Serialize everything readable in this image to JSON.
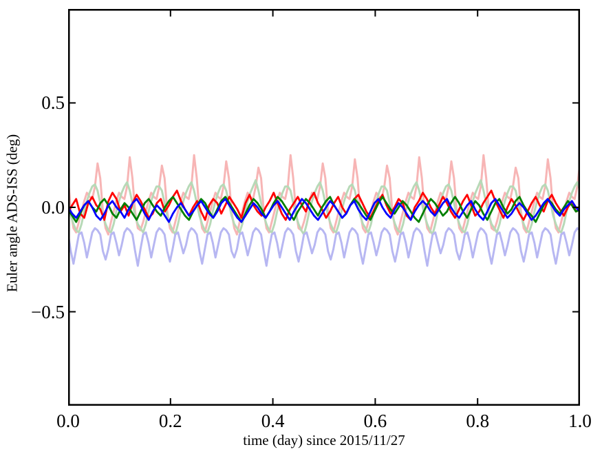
{
  "figure": {
    "xlabel": "time (day) since 2015/11/27",
    "ylabel": "Euler angle ADS-ISS (deg)"
  },
  "chart_data": {
    "type": "line",
    "title": "",
    "xlabel": "time (day) since 2015/11/27",
    "ylabel": "Euler angle ADS-ISS (deg)",
    "xlim": [
      0.0,
      1.0
    ],
    "ylim": [
      -0.95,
      0.95
    ],
    "grid": false,
    "legend": "none",
    "background_color": "#ffffff",
    "frame_color": "#000000",
    "tick_direction": "in",
    "xticks": {
      "values": [
        0.0,
        0.2,
        0.4,
        0.6,
        0.8,
        1.0
      ],
      "labels": [
        "0.0",
        "0.2",
        "0.4",
        "0.6",
        "0.8",
        "1.0"
      ]
    },
    "yticks": {
      "values": [
        0.5,
        0.0,
        -0.5
      ],
      "labels": [
        "0.5",
        "0.0",
        "−0.5"
      ]
    },
    "series": [
      {
        "name": "angle-1-orbital-pale-red",
        "color": "#f7b5b5",
        "width": 3,
        "y": [
          0.14,
          -0.02,
          -0.1,
          -0.12,
          -0.07,
          -0.02,
          0.03,
          0.07,
          0.05,
          0.04,
          0.1,
          0.21,
          0.14,
          -0.02,
          -0.1,
          -0.13,
          -0.07,
          -0.02,
          0.03,
          0.07,
          0.05,
          0.04,
          0.1,
          0.24,
          0.14,
          -0.02,
          -0.1,
          -0.11,
          -0.07,
          -0.02,
          0.03,
          0.07,
          0.05,
          0.04,
          0.1,
          0.2,
          0.14,
          -0.02,
          -0.1,
          -0.12,
          -0.07,
          -0.02,
          0.03,
          0.07,
          0.05,
          0.04,
          0.1,
          0.25,
          0.14,
          -0.02,
          -0.1,
          -0.12,
          -0.07,
          -0.02,
          0.03,
          0.07,
          0.05,
          0.04,
          0.1,
          0.22,
          0.14,
          -0.02,
          -0.1,
          -0.13,
          -0.07,
          -0.02,
          0.03,
          0.07,
          0.05,
          0.04,
          0.1,
          0.19,
          0.14,
          -0.02,
          -0.1,
          -0.12,
          -0.07,
          -0.02,
          0.03,
          0.07,
          0.05,
          0.04,
          0.1,
          0.25,
          0.14,
          -0.02,
          -0.1,
          -0.11,
          -0.07,
          -0.02,
          0.03,
          0.07,
          0.05,
          0.04,
          0.1,
          0.21,
          0.14,
          -0.02,
          -0.1,
          -0.12,
          -0.07,
          -0.02,
          0.03,
          0.07,
          0.05,
          0.04,
          0.1,
          0.23,
          0.14,
          -0.02,
          -0.1,
          -0.12,
          -0.07,
          -0.02,
          0.03,
          0.07,
          0.05,
          0.04,
          0.1,
          0.2,
          0.14,
          -0.02,
          -0.1,
          -0.13,
          -0.07,
          -0.02,
          0.03,
          0.07,
          0.05,
          0.04,
          0.1,
          0.24,
          0.14,
          -0.02,
          -0.1,
          -0.12,
          -0.07,
          -0.02,
          0.03,
          0.07,
          0.05,
          0.04,
          0.1,
          0.22,
          0.14,
          -0.02,
          -0.1,
          -0.12,
          -0.07,
          -0.02,
          0.03,
          0.07,
          0.05,
          0.04,
          0.1,
          0.25,
          0.14,
          -0.02,
          -0.1,
          -0.11,
          -0.07,
          -0.02,
          0.03,
          0.07,
          0.05,
          0.04,
          0.1,
          0.19,
          0.14,
          -0.02,
          -0.1,
          -0.12,
          -0.07,
          -0.02,
          0.03,
          0.07,
          0.05,
          0.04,
          0.1,
          0.23,
          0.14,
          -0.02,
          -0.1,
          -0.12,
          -0.07,
          -0.02,
          0.03,
          0.07,
          0.05,
          0.04,
          0.1,
          0.21
        ]
      },
      {
        "name": "angle-2-orbital-pale-green",
        "color": "#b7d9b7",
        "width": 3,
        "y": [
          0.02,
          -0.04,
          -0.08,
          -0.11,
          -0.12,
          -0.08,
          -0.02,
          0.03,
          0.07,
          0.1,
          0.11,
          0.08,
          0.02,
          -0.04,
          -0.08,
          -0.11,
          -0.12,
          -0.08,
          -0.02,
          0.03,
          0.07,
          0.1,
          0.12,
          0.08,
          0.02,
          -0.04,
          -0.08,
          -0.1,
          -0.12,
          -0.08,
          -0.02,
          0.03,
          0.07,
          0.1,
          0.1,
          0.08,
          0.02,
          -0.04,
          -0.08,
          -0.11,
          -0.13,
          -0.08,
          -0.02,
          0.03,
          0.07,
          0.1,
          0.12,
          0.08,
          0.02,
          -0.04,
          -0.08,
          -0.11,
          -0.12,
          -0.08,
          -0.02,
          0.03,
          0.07,
          0.1,
          0.11,
          0.08,
          0.02,
          -0.04,
          -0.08,
          -0.1,
          -0.12,
          -0.08,
          -0.02,
          0.03,
          0.07,
          0.1,
          0.13,
          0.08,
          0.02,
          -0.04,
          -0.08,
          -0.11,
          -0.12,
          -0.08,
          -0.02,
          0.03,
          0.07,
          0.1,
          0.1,
          0.08,
          0.02,
          -0.04,
          -0.08,
          -0.11,
          -0.13,
          -0.08,
          -0.02,
          0.03,
          0.07,
          0.1,
          0.12,
          0.08,
          0.02,
          -0.04,
          -0.08,
          -0.11,
          -0.12,
          -0.08,
          -0.02,
          0.03,
          0.07,
          0.1,
          0.11,
          0.08,
          0.02,
          -0.04,
          -0.08,
          -0.1,
          -0.12,
          -0.08,
          -0.02,
          0.03,
          0.07,
          0.1,
          0.1,
          0.08,
          0.02,
          -0.04,
          -0.08,
          -0.11,
          -0.12,
          -0.08,
          -0.02,
          0.03,
          0.07,
          0.1,
          0.12,
          0.08,
          0.02,
          -0.04,
          -0.08,
          -0.11,
          -0.13,
          -0.08,
          -0.02,
          0.03,
          0.07,
          0.1,
          0.11,
          0.08,
          0.02,
          -0.04,
          -0.08,
          -0.11,
          -0.12,
          -0.08,
          -0.02,
          0.03,
          0.07,
          0.1,
          0.13,
          0.08,
          0.02,
          -0.04,
          -0.08,
          -0.1,
          -0.12,
          -0.08,
          -0.02,
          0.03,
          0.07,
          0.1,
          0.1,
          0.08,
          0.02,
          -0.04,
          -0.08,
          -0.11,
          -0.12,
          -0.08,
          -0.02,
          0.03,
          0.07,
          0.1,
          0.11,
          0.08,
          0.02,
          -0.04,
          -0.08,
          -0.11,
          -0.12,
          -0.08,
          -0.02,
          0.03,
          0.07,
          0.1,
          0.12,
          0.08
        ]
      },
      {
        "name": "angle-3-orbital-pale-blue",
        "color": "#b7b7f2",
        "width": 3,
        "y": [
          -0.13,
          -0.21,
          -0.27,
          -0.2,
          -0.13,
          -0.12,
          -0.17,
          -0.24,
          -0.18,
          -0.12,
          -0.1,
          -0.11,
          -0.13,
          -0.21,
          -0.25,
          -0.2,
          -0.13,
          -0.12,
          -0.17,
          -0.23,
          -0.18,
          -0.12,
          -0.1,
          -0.11,
          -0.13,
          -0.21,
          -0.28,
          -0.2,
          -0.13,
          -0.12,
          -0.17,
          -0.24,
          -0.18,
          -0.12,
          -0.1,
          -0.11,
          -0.13,
          -0.21,
          -0.26,
          -0.2,
          -0.13,
          -0.12,
          -0.17,
          -0.22,
          -0.18,
          -0.12,
          -0.1,
          -0.11,
          -0.13,
          -0.21,
          -0.27,
          -0.2,
          -0.13,
          -0.12,
          -0.17,
          -0.24,
          -0.18,
          -0.12,
          -0.1,
          -0.11,
          -0.13,
          -0.21,
          -0.24,
          -0.2,
          -0.13,
          -0.12,
          -0.17,
          -0.23,
          -0.18,
          -0.12,
          -0.1,
          -0.11,
          -0.13,
          -0.21,
          -0.28,
          -0.2,
          -0.13,
          -0.12,
          -0.17,
          -0.24,
          -0.18,
          -0.12,
          -0.1,
          -0.11,
          -0.13,
          -0.21,
          -0.26,
          -0.2,
          -0.13,
          -0.12,
          -0.17,
          -0.22,
          -0.18,
          -0.12,
          -0.1,
          -0.11,
          -0.13,
          -0.21,
          -0.25,
          -0.2,
          -0.13,
          -0.12,
          -0.17,
          -0.24,
          -0.18,
          -0.12,
          -0.1,
          -0.11,
          -0.13,
          -0.21,
          -0.27,
          -0.2,
          -0.13,
          -0.12,
          -0.17,
          -0.23,
          -0.18,
          -0.12,
          -0.1,
          -0.11,
          -0.13,
          -0.21,
          -0.26,
          -0.2,
          -0.13,
          -0.12,
          -0.17,
          -0.24,
          -0.18,
          -0.12,
          -0.1,
          -0.11,
          -0.13,
          -0.21,
          -0.28,
          -0.2,
          -0.13,
          -0.12,
          -0.17,
          -0.22,
          -0.18,
          -0.12,
          -0.1,
          -0.11,
          -0.13,
          -0.21,
          -0.25,
          -0.2,
          -0.13,
          -0.12,
          -0.17,
          -0.24,
          -0.18,
          -0.12,
          -0.1,
          -0.11,
          -0.13,
          -0.21,
          -0.27,
          -0.2,
          -0.13,
          -0.12,
          -0.17,
          -0.23,
          -0.18,
          -0.12,
          -0.1,
          -0.11,
          -0.13,
          -0.21,
          -0.26,
          -0.2,
          -0.13,
          -0.12,
          -0.17,
          -0.24,
          -0.18,
          -0.12,
          -0.1,
          -0.11,
          -0.13,
          -0.21,
          -0.27,
          -0.2,
          -0.13,
          -0.12,
          -0.17,
          -0.23,
          -0.18,
          -0.12,
          -0.1,
          -0.11
        ]
      },
      {
        "name": "angle-1-residual-red",
        "color": "#ff0000",
        "width": 2.8,
        "y": [
          -0.02,
          0.01,
          0.04,
          -0.03,
          -0.05,
          0.02,
          0.05,
          0.01,
          -0.01,
          -0.06,
          0.03,
          0.07,
          0.04,
          -0.02,
          0.01,
          -0.04,
          0.02,
          0.06,
          0.03,
          -0.01,
          -0.05,
          -0.03,
          0.02,
          0.04,
          -0.02,
          0.01,
          0.05,
          0.08,
          0.03,
          -0.01,
          -0.04,
          0.0,
          0.03,
          -0.02,
          -0.06,
          0.01,
          0.04,
          0.02,
          -0.03,
          0.01,
          0.05,
          0.02,
          -0.01,
          -0.05,
          0.02,
          0.06,
          0.01,
          -0.02,
          -0.04,
          0.0,
          0.03,
          0.07,
          0.02,
          -0.03,
          -0.06,
          -0.01,
          0.02,
          0.05,
          0.01,
          -0.02,
          0.04,
          0.07,
          0.02,
          -0.01,
          -0.05,
          -0.02,
          0.02,
          0.05,
          0.0,
          -0.03,
          0.01,
          0.04,
          0.06,
          0.02,
          -0.02,
          -0.05,
          -0.01,
          0.03,
          0.06,
          0.01,
          -0.03,
          0.0,
          0.04,
          0.02,
          -0.04,
          -0.06,
          0.0,
          0.03,
          0.07,
          0.04,
          0.0,
          -0.03,
          0.01,
          0.05,
          0.02,
          -0.02,
          -0.05,
          -0.01,
          0.03,
          0.06,
          0.01,
          -0.04,
          -0.02,
          0.02,
          0.05,
          0.08,
          0.03,
          -0.01,
          -0.05,
          0.0,
          0.04,
          0.01,
          -0.03,
          -0.06,
          -0.02,
          0.02,
          0.05,
          0.01,
          -0.02,
          0.03,
          0.06,
          0.02,
          -0.01,
          -0.04,
          0.0,
          0.03,
          -0.02,
          -0.01
        ]
      },
      {
        "name": "angle-2-residual-green",
        "color": "#007f00",
        "width": 2.8,
        "y": [
          -0.01,
          -0.04,
          -0.07,
          -0.03,
          0.01,
          0.03,
          0.0,
          -0.02,
          0.02,
          0.04,
          0.01,
          -0.03,
          -0.05,
          -0.01,
          0.02,
          0.0,
          -0.03,
          -0.06,
          -0.02,
          0.02,
          0.04,
          0.01,
          -0.02,
          -0.04,
          0.0,
          0.03,
          0.05,
          0.02,
          -0.01,
          -0.04,
          -0.06,
          -0.02,
          0.01,
          0.04,
          0.02,
          -0.02,
          -0.05,
          -0.01,
          0.03,
          0.05,
          0.02,
          -0.01,
          -0.04,
          -0.07,
          -0.03,
          0.01,
          0.04,
          0.02,
          -0.01,
          -0.05,
          -0.02,
          0.02,
          0.05,
          0.03,
          0.0,
          -0.03,
          -0.06,
          -0.02,
          0.01,
          0.04,
          0.02,
          -0.01,
          -0.04,
          0.0,
          0.03,
          0.05,
          0.01,
          -0.02,
          -0.05,
          -0.03,
          0.01,
          0.04,
          0.02,
          -0.01,
          -0.04,
          -0.06,
          -0.02,
          0.02,
          0.05,
          0.02,
          -0.01,
          -0.03,
          0.0,
          0.03,
          0.01,
          -0.02,
          -0.05,
          -0.07,
          -0.03,
          0.01,
          0.04,
          0.02,
          -0.01,
          -0.04,
          -0.02,
          0.02,
          0.05,
          0.02,
          -0.02,
          -0.05,
          -0.01,
          0.03,
          0.01,
          -0.03,
          -0.06,
          -0.02,
          0.02,
          0.04,
          0.0,
          -0.03,
          -0.01,
          0.03,
          0.05,
          0.01,
          -0.02,
          -0.04,
          -0.07,
          -0.03,
          0.01,
          0.04,
          0.02,
          -0.01,
          -0.03,
          0.0,
          0.03,
          0.01,
          -0.02,
          -0.01
        ]
      },
      {
        "name": "angle-3-residual-blue",
        "color": "#0000ff",
        "width": 2.8,
        "y": [
          0.0,
          -0.03,
          -0.05,
          -0.02,
          0.01,
          0.03,
          0.0,
          -0.04,
          -0.06,
          -0.03,
          0.01,
          0.03,
          0.0,
          -0.02,
          -0.05,
          -0.01,
          0.02,
          0.04,
          0.01,
          -0.03,
          -0.06,
          -0.02,
          0.01,
          -0.01,
          -0.04,
          -0.07,
          -0.03,
          0.0,
          0.02,
          -0.01,
          -0.04,
          -0.02,
          0.01,
          0.03,
          0.0,
          -0.03,
          -0.05,
          -0.02,
          0.02,
          0.04,
          0.01,
          -0.02,
          -0.05,
          -0.07,
          -0.04,
          -0.01,
          0.02,
          0.0,
          -0.03,
          -0.05,
          -0.02,
          0.01,
          0.03,
          0.0,
          -0.03,
          -0.06,
          -0.02,
          0.01,
          0.04,
          0.02,
          -0.01,
          -0.04,
          -0.06,
          -0.03,
          0.0,
          0.03,
          0.01,
          -0.02,
          -0.05,
          -0.03,
          0.01,
          0.03,
          -0.01,
          -0.04,
          -0.06,
          -0.02,
          0.02,
          0.04,
          0.0,
          -0.03,
          -0.05,
          -0.01,
          0.02,
          0.0,
          -0.03,
          -0.06,
          -0.02,
          0.01,
          0.03,
          0.01,
          -0.02,
          -0.04,
          -0.01,
          0.02,
          0.04,
          0.0,
          -0.03,
          -0.05,
          -0.02,
          0.01,
          0.03,
          -0.01,
          -0.04,
          -0.06,
          -0.02,
          0.02,
          0.04,
          0.01,
          -0.02,
          -0.05,
          -0.03,
          0.0,
          0.02,
          0.0,
          -0.03,
          -0.06,
          -0.04,
          -0.01,
          0.02,
          0.04,
          0.01,
          -0.02,
          -0.04,
          -0.01,
          0.01,
          0.03,
          0.0,
          -0.02
        ]
      }
    ]
  }
}
